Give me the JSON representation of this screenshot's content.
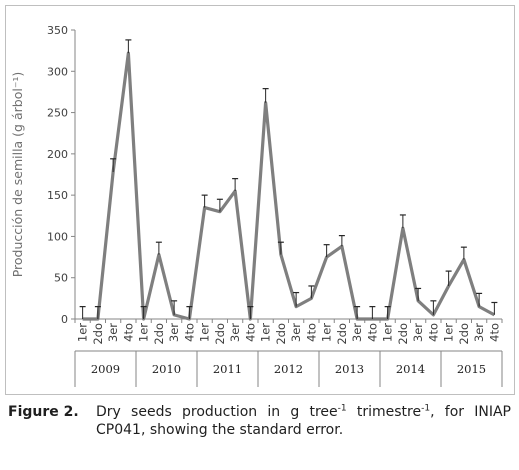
{
  "chart_data": {
    "type": "line",
    "ylabel": "Producción de semilla (g árbol⁻¹)",
    "ylim": [
      0,
      350
    ],
    "yticks": [
      0,
      50,
      100,
      150,
      200,
      250,
      300,
      350
    ],
    "grid": false,
    "legend": "none",
    "groups": [
      {
        "label": "2009",
        "categories": [
          "1er",
          "2do",
          "3er",
          "4to"
        ]
      },
      {
        "label": "2010",
        "categories": [
          "1er",
          "2do",
          "3er",
          "4to"
        ]
      },
      {
        "label": "2011",
        "categories": [
          "1er",
          "2do",
          "3er",
          "4to"
        ]
      },
      {
        "label": "2012",
        "categories": [
          "1er",
          "2do",
          "3er",
          "4to"
        ]
      },
      {
        "label": "2013",
        "categories": [
          "1er",
          "2do",
          "3er",
          "4to"
        ]
      },
      {
        "label": "2014",
        "categories": [
          "1er",
          "2do",
          "3er",
          "4to"
        ]
      },
      {
        "label": "2015",
        "categories": [
          "1er",
          "2do",
          "3er",
          "4to"
        ]
      }
    ],
    "series": [
      {
        "values": [
          0,
          0,
          178,
          322,
          0,
          78,
          5,
          0,
          135,
          130,
          155,
          0,
          262,
          78,
          15,
          25,
          75,
          88,
          0,
          0,
          0,
          110,
          22,
          5,
          40,
          72,
          15,
          5
        ],
        "error": [
          15,
          15,
          16,
          16,
          15,
          15,
          17,
          15,
          15,
          15,
          15,
          15,
          17,
          15,
          17,
          15,
          15,
          13,
          15,
          15,
          15,
          16,
          15,
          17,
          18,
          15,
          16,
          15
        ],
        "color": "#7f7f7f"
      }
    ]
  },
  "caption": {
    "label": "Figure 2.",
    "text_a": "Dry seeds production in g tree",
    "sup_a": "-1",
    "text_b": " trimestre",
    "sup_b": "-1",
    "text_c": ", for INIAP CP041, showing the standard error."
  }
}
